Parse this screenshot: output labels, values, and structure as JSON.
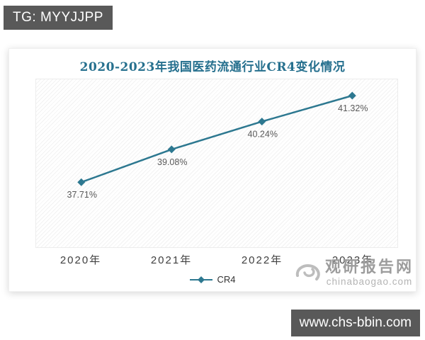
{
  "badges": {
    "telegram": "TG: MYYJJPP",
    "site_url": "www.chs-bbin.com"
  },
  "chart_data": {
    "type": "line",
    "title": "2020-2023年我国医药流通行业CR4变化情况",
    "categories": [
      "2020年",
      "2021年",
      "2022年",
      "2023年"
    ],
    "series_name": "CR4",
    "values": [
      37.71,
      39.08,
      40.24,
      41.32
    ],
    "labels": [
      "37.71%",
      "39.08%",
      "40.24%",
      "41.32%"
    ],
    "ylim": [
      35,
      42
    ],
    "xlabel": "",
    "ylabel": "",
    "grid": false,
    "legend_position": "bottom-center",
    "marker": "diamond",
    "colors": {
      "line": "#2d7890",
      "marker": "#2d7890",
      "title": "#26708e",
      "data_label": "#595959",
      "badge_bg": "#595959",
      "watermark": "#9d9d9d"
    }
  },
  "watermark": {
    "name": "观研报告网",
    "domain": "chinabaogao.com"
  }
}
